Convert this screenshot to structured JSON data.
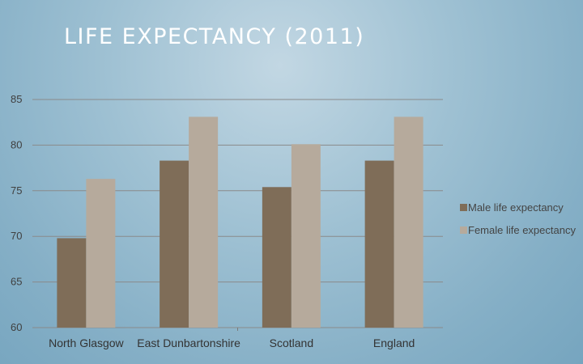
{
  "slide": {
    "title": "LIFE EXPECTANCY (2011)"
  },
  "colors": {
    "male": "#7f6d58",
    "female": "#b6aa9c",
    "grid": "#8a8a8a",
    "axis": "#7a7a7a"
  },
  "chart_data": {
    "type": "bar",
    "title": "",
    "xlabel": "",
    "ylabel": "",
    "categories": [
      "North Glasgow",
      "East Dunbartonshire",
      "Scotland",
      "England"
    ],
    "series": [
      {
        "name": "Male life expectancy",
        "values": [
          69.8,
          78.3,
          75.4,
          78.3
        ]
      },
      {
        "name": "Female life expectancy",
        "values": [
          76.3,
          83.1,
          80.1,
          83.1
        ]
      }
    ],
    "ylim": [
      60,
      85
    ],
    "yticks": [
      "60",
      "65",
      "70",
      "75",
      "80",
      "85"
    ],
    "grid": true,
    "legend_position": "right"
  }
}
